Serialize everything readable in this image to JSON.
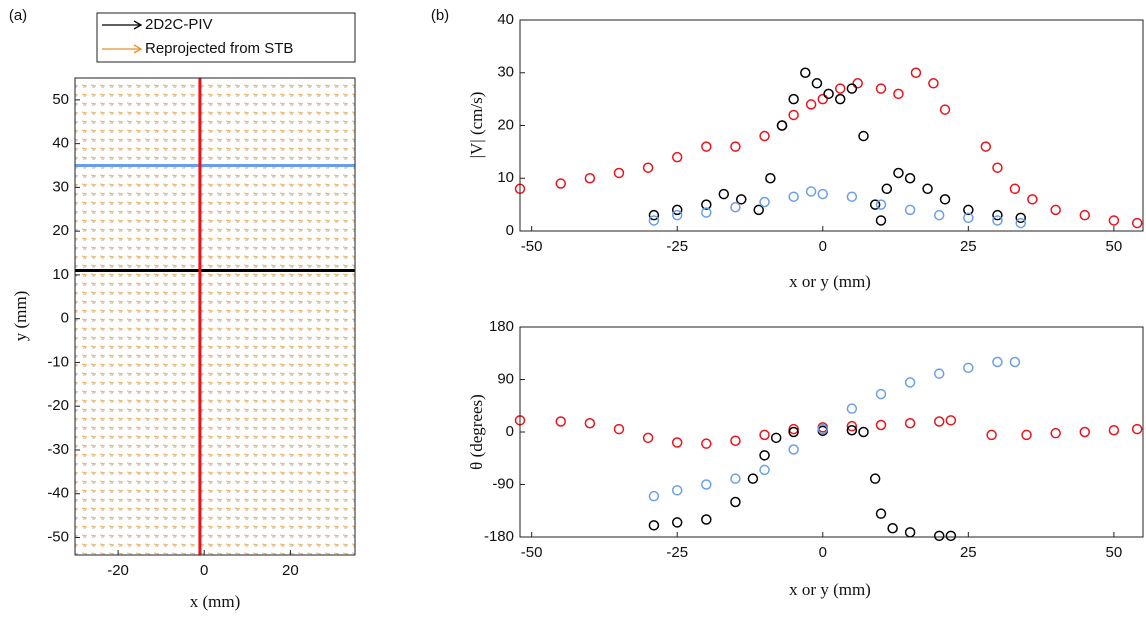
{
  "chart_data": [
    {
      "type": "quiver",
      "panel_label": "(a)",
      "xlabel": "x (mm)",
      "ylabel": "y (mm)",
      "xlim": [
        -30,
        35
      ],
      "ylim": [
        -54,
        55
      ],
      "xticks": [
        -20,
        0,
        20
      ],
      "yticks": [
        -50,
        -40,
        -30,
        -20,
        -10,
        0,
        10,
        20,
        30,
        40,
        50
      ],
      "series": [
        {
          "name": "2D2C-PIV",
          "color": "#000000"
        },
        {
          "name": "Reprojected from STB",
          "color": "#e8922a"
        }
      ],
      "hlines": [
        {
          "value": 35,
          "color": "#6a9fe6"
        },
        {
          "value": 11,
          "color": "#000000"
        }
      ],
      "vlines": [
        {
          "value": -1,
          "color": "#e8131b"
        }
      ]
    },
    {
      "type": "scatter",
      "panel_label": "(b)",
      "xlabel": "x or y (mm)",
      "ylabel": "|V| (cm/s)",
      "xlim": [
        -52,
        55
      ],
      "ylim": [
        0,
        40
      ],
      "xticks": [
        -50,
        -25,
        0,
        25,
        50
      ],
      "yticks": [
        0,
        10,
        20,
        30,
        40
      ],
      "series": [
        {
          "color": "#e8131b",
          "x": [
            -52,
            -45,
            -40,
            -35,
            -30,
            -25,
            -20,
            -15,
            -10,
            -7,
            -5,
            -2,
            0,
            3,
            6,
            10,
            13,
            16,
            19,
            21,
            28,
            30,
            33,
            36,
            40,
            45,
            50,
            54
          ],
          "values": [
            8,
            9,
            10,
            11,
            12,
            14,
            16,
            16,
            18,
            20,
            22,
            24,
            25,
            27,
            28,
            27,
            26,
            30,
            28,
            23,
            16,
            12,
            8,
            6,
            4,
            3,
            2,
            1.5
          ]
        },
        {
          "color": "#000000",
          "x": [
            -29,
            -25,
            -20,
            -17,
            -14,
            -11,
            -9,
            -7,
            -5,
            -3,
            -1,
            1,
            3,
            5,
            7,
            9,
            10,
            11,
            13,
            15,
            18,
            21,
            25,
            30,
            34
          ],
          "values": [
            3,
            4,
            5,
            7,
            6,
            4,
            10,
            20,
            25,
            30,
            28,
            26,
            25,
            27,
            18,
            5,
            2,
            8,
            11,
            10,
            8,
            6,
            4,
            3,
            2.5
          ]
        },
        {
          "color": "#6a9fe6",
          "x": [
            -29,
            -25,
            -20,
            -15,
            -10,
            -5,
            -2,
            0,
            5,
            10,
            15,
            20,
            25,
            30,
            34
          ],
          "values": [
            2,
            3,
            3.5,
            4.5,
            5.5,
            6.5,
            7.5,
            7,
            6.5,
            5,
            4,
            3,
            2.5,
            2,
            1.5
          ]
        }
      ]
    },
    {
      "type": "scatter",
      "xlabel": "x or y (mm)",
      "ylabel": "θ (degrees)",
      "xlim": [
        -52,
        55
      ],
      "ylim": [
        -180,
        180
      ],
      "xticks": [
        -50,
        -25,
        0,
        25,
        50
      ],
      "yticks": [
        -180,
        -90,
        0,
        90,
        180
      ],
      "series": [
        {
          "color": "#e8131b",
          "x": [
            -52,
            -45,
            -40,
            -35,
            -30,
            -25,
            -20,
            -15,
            -10,
            -5,
            0,
            5,
            10,
            15,
            20,
            22,
            29,
            35,
            40,
            45,
            50,
            54
          ],
          "values": [
            20,
            18,
            15,
            5,
            -10,
            -18,
            -20,
            -15,
            -5,
            5,
            8,
            10,
            12,
            15,
            18,
            20,
            -5,
            -5,
            -2,
            0,
            3,
            5
          ]
        },
        {
          "color": "#000000",
          "x": [
            -29,
            -25,
            -20,
            -15,
            -12,
            -10,
            -8,
            -5,
            0,
            5,
            7,
            9,
            10,
            12,
            15,
            20,
            22
          ],
          "values": [
            -160,
            -155,
            -150,
            -120,
            -80,
            -40,
            -10,
            0,
            2,
            3,
            0,
            -80,
            -140,
            -165,
            -172,
            -178,
            -178
          ]
        },
        {
          "color": "#6a9fe6",
          "x": [
            -29,
            -25,
            -20,
            -15,
            -10,
            -5,
            0,
            5,
            10,
            15,
            20,
            25,
            30,
            33
          ],
          "values": [
            -110,
            -100,
            -90,
            -80,
            -65,
            -30,
            5,
            40,
            65,
            85,
            100,
            110,
            120,
            120
          ]
        }
      ]
    }
  ]
}
